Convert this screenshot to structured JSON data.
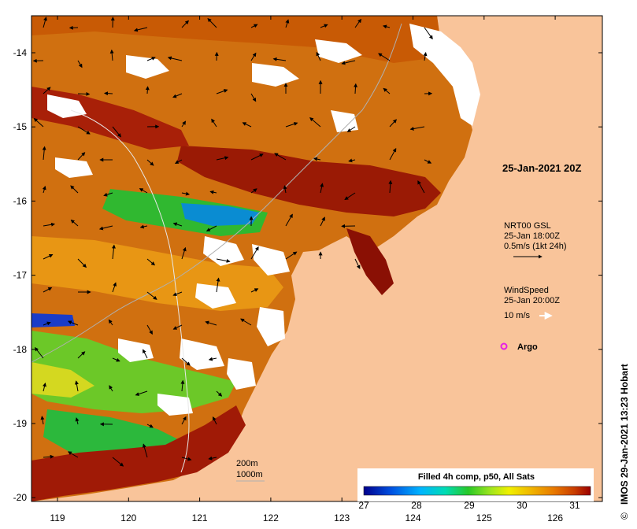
{
  "map": {
    "title_stamp": "IMOS 29-Jan-2021 13:23 Hobart",
    "copyright_symbol": "©",
    "date_label": "25-Jan-2021 20Z",
    "x_ticks": [
      "119",
      "120",
      "121",
      "122",
      "123",
      "124",
      "125",
      "126"
    ],
    "y_ticks": [
      "-14",
      "-15",
      "-16",
      "-17",
      "-18",
      "-19",
      "-20"
    ],
    "legend_currents": {
      "line1": "NRT00 GSL",
      "line2": "25-Jan 18:00Z",
      "line3": "0.5m/s (1kt 24h)"
    },
    "legend_wind": {
      "line1": "WindSpeed",
      "line2": "25-Jan 20:00Z",
      "line3": "10 m/s"
    },
    "legend_argo": {
      "label": "Argo",
      "color": "#e61ee6"
    },
    "bathymetry": {
      "contour1": "200m",
      "contour2": "1000m"
    },
    "colorbar": {
      "title": "Filled 4h comp, p50, All Sats",
      "ticks": [
        "27",
        "28",
        "29",
        "30",
        "31"
      ],
      "range": [
        27,
        31.3
      ]
    },
    "colors": {
      "land": "#f9c49a",
      "warm": "#c85a05",
      "hot": "#9a0c04",
      "mild": "#e89010",
      "cool": "#28c028",
      "cold": "#1a40c8"
    }
  }
}
